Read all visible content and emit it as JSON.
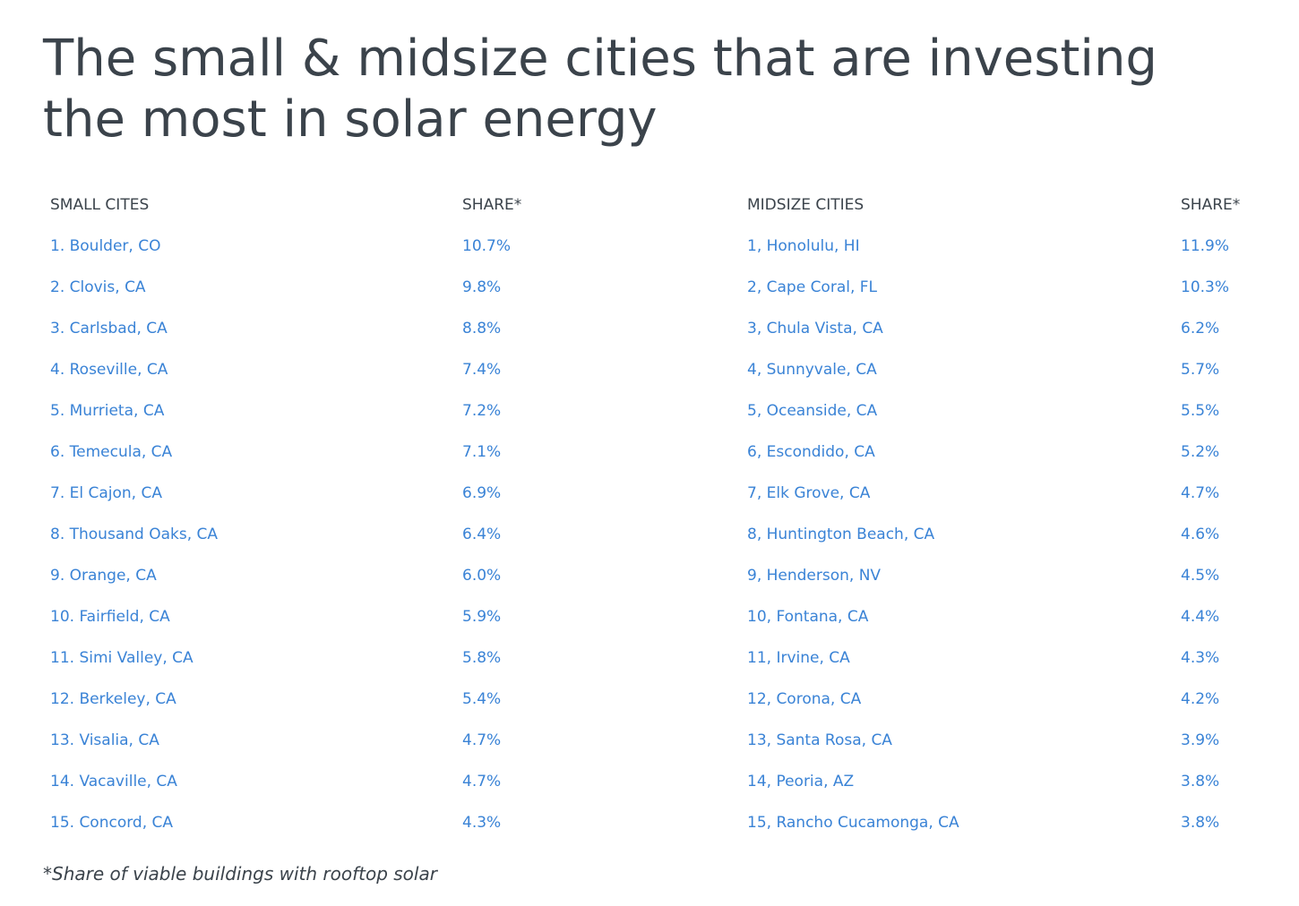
{
  "title": "The small & midsize cities that are investing the most in solar energy",
  "small": {
    "header_name": "SMALL CITES",
    "header_share": "SHARE*",
    "rows": [
      {
        "name": "1. Boulder, CO",
        "share": "10.7%"
      },
      {
        "name": "2. Clovis, CA",
        "share": "9.8%"
      },
      {
        "name": "3. Carlsbad, CA",
        "share": "8.8%"
      },
      {
        "name": "4. Roseville, CA",
        "share": "7.4%"
      },
      {
        "name": "5. Murrieta, CA",
        "share": "7.2%"
      },
      {
        "name": "6. Temecula, CA",
        "share": "7.1%"
      },
      {
        "name": "7. El Cajon, CA",
        "share": "6.9%"
      },
      {
        "name": "8. Thousand Oaks, CA",
        "share": "6.4%"
      },
      {
        "name": "9. Orange, CA",
        "share": "6.0%"
      },
      {
        "name": "10. Fairfield, CA",
        "share": "5.9%"
      },
      {
        "name": "11. Simi Valley, CA",
        "share": "5.8%"
      },
      {
        "name": "12. Berkeley, CA",
        "share": "5.4%"
      },
      {
        "name": "13. Visalia, CA",
        "share": "4.7%"
      },
      {
        "name": "14. Vacaville, CA",
        "share": "4.7%"
      },
      {
        "name": "15. Concord, CA",
        "share": "4.3%"
      }
    ]
  },
  "midsize": {
    "header_name": "MIDSIZE CITIES",
    "header_share": "SHARE*",
    "rows": [
      {
        "name": "1, Honolulu, HI",
        "share": "11.9%"
      },
      {
        "name": "2, Cape Coral, FL",
        "share": "10.3%"
      },
      {
        "name": "3, Chula Vista, CA",
        "share": "6.2%"
      },
      {
        "name": "4, Sunnyvale, CA",
        "share": "5.7%"
      },
      {
        "name": "5, Oceanside, CA",
        "share": "5.5%"
      },
      {
        "name": "6, Escondido, CA",
        "share": "5.2%"
      },
      {
        "name": "7, Elk Grove, CA",
        "share": "4.7%"
      },
      {
        "name": "8, Huntington Beach, CA",
        "share": "4.6%"
      },
      {
        "name": "9, Henderson, NV",
        "share": "4.5%"
      },
      {
        "name": "10, Fontana, CA",
        "share": "4.4%"
      },
      {
        "name": "11, Irvine, CA",
        "share": "4.3%"
      },
      {
        "name": "12, Corona, CA",
        "share": "4.2%"
      },
      {
        "name": "13, Santa Rosa, CA",
        "share": "3.9%"
      },
      {
        "name": "14, Peoria, AZ",
        "share": "3.8%"
      },
      {
        "name": "15, Rancho Cucamonga, CA",
        "share": "3.8%"
      }
    ]
  },
  "footnote": "*Share of viable buildings with rooftop solar",
  "colors": {
    "text": "#3b434b",
    "link": "#3a83d6",
    "background": "#ffffff"
  }
}
